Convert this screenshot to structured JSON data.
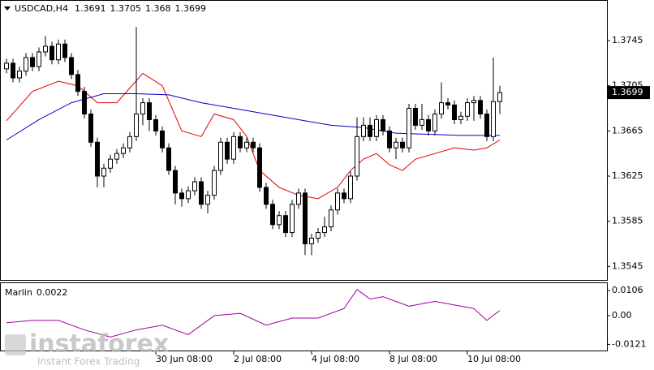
{
  "chart_data": [
    {
      "type": "candlestick",
      "symbol": "USDCAD,H4",
      "open": [
        1.372,
        1.3725,
        1.3712,
        1.3718,
        1.373,
        1.3722,
        1.3735,
        1.374,
        1.3728,
        1.3742,
        1.373,
        1.3715,
        1.37,
        1.368,
        1.3655,
        1.3625,
        1.3632,
        1.364,
        1.3645,
        1.365,
        1.366,
        1.368,
        1.369,
        1.3675,
        1.3665,
        1.365,
        1.363,
        1.361,
        1.3605,
        1.3612,
        1.362,
        1.36,
        1.3608,
        1.363,
        1.3655,
        1.364,
        1.366,
        1.365,
        1.3655,
        1.365,
        1.3615,
        1.36,
        1.3582,
        1.359,
        1.3575,
        1.36,
        1.361,
        1.3565,
        1.357,
        1.3575,
        1.358,
        1.3595,
        1.361,
        1.3605,
        1.3625,
        1.366,
        1.367,
        1.366,
        1.3675,
        1.3665,
        1.365,
        1.3655,
        1.365,
        1.3685,
        1.367,
        1.3675,
        1.3665,
        1.368,
        1.369,
        1.3688,
        1.3675,
        1.3678,
        1.369,
        1.3692,
        1.368,
        1.366,
        1.3691
      ],
      "high": [
        1.3729,
        1.3729,
        1.3722,
        1.3734,
        1.3734,
        1.3739,
        1.3749,
        1.3744,
        1.3746,
        1.3746,
        1.3734,
        1.3719,
        1.3704,
        1.3684,
        1.3659,
        1.3636,
        1.3644,
        1.3649,
        1.3654,
        1.3664,
        1.3757,
        1.3694,
        1.3694,
        1.3679,
        1.3669,
        1.3654,
        1.3634,
        1.3614,
        1.3616,
        1.3624,
        1.3624,
        1.3612,
        1.3634,
        1.3659,
        1.3659,
        1.3664,
        1.3664,
        1.3659,
        1.3659,
        1.3654,
        1.3619,
        1.3604,
        1.3594,
        1.3594,
        1.3604,
        1.3614,
        1.3614,
        1.3574,
        1.3579,
        1.3589,
        1.3599,
        1.3614,
        1.3614,
        1.3629,
        1.3677,
        1.3677,
        1.3677,
        1.3679,
        1.3679,
        1.3669,
        1.3659,
        1.3659,
        1.3689,
        1.3689,
        1.3689,
        1.3679,
        1.3684,
        1.3708,
        1.3694,
        1.3692,
        1.3682,
        1.3694,
        1.3696,
        1.3696,
        1.3684,
        1.373,
        1.3705
      ],
      "low": [
        1.3716,
        1.3708,
        1.3708,
        1.3714,
        1.3718,
        1.3718,
        1.3731,
        1.3724,
        1.3724,
        1.3726,
        1.3711,
        1.3696,
        1.3676,
        1.3651,
        1.3615,
        1.3615,
        1.3628,
        1.3636,
        1.3641,
        1.3646,
        1.3656,
        1.367,
        1.3665,
        1.3661,
        1.3646,
        1.3626,
        1.36,
        1.3598,
        1.3601,
        1.3608,
        1.3596,
        1.3592,
        1.3604,
        1.3626,
        1.3636,
        1.3636,
        1.3646,
        1.3646,
        1.3646,
        1.3611,
        1.3596,
        1.3578,
        1.3578,
        1.3571,
        1.3571,
        1.3596,
        1.3555,
        1.3555,
        1.3566,
        1.3571,
        1.3576,
        1.3591,
        1.3601,
        1.3601,
        1.3621,
        1.3656,
        1.3656,
        1.3656,
        1.3661,
        1.3646,
        1.364,
        1.3646,
        1.3646,
        1.3666,
        1.3666,
        1.3661,
        1.3661,
        1.3676,
        1.3684,
        1.3671,
        1.3671,
        1.3674,
        1.3674,
        1.3676,
        1.3656,
        1.3656,
        1.368
      ],
      "close": [
        1.3725,
        1.3712,
        1.3718,
        1.373,
        1.3722,
        1.3735,
        1.374,
        1.3728,
        1.3742,
        1.373,
        1.3715,
        1.37,
        1.368,
        1.3655,
        1.3625,
        1.3632,
        1.364,
        1.3645,
        1.365,
        1.366,
        1.368,
        1.369,
        1.3675,
        1.3665,
        1.365,
        1.363,
        1.361,
        1.3605,
        1.3612,
        1.362,
        1.36,
        1.3608,
        1.363,
        1.3655,
        1.364,
        1.366,
        1.365,
        1.3655,
        1.365,
        1.3615,
        1.36,
        1.3582,
        1.359,
        1.3575,
        1.36,
        1.361,
        1.3565,
        1.357,
        1.3575,
        1.358,
        1.3595,
        1.361,
        1.3605,
        1.3625,
        1.366,
        1.367,
        1.366,
        1.3675,
        1.3665,
        1.365,
        1.3655,
        1.365,
        1.3685,
        1.367,
        1.3675,
        1.3665,
        1.368,
        1.369,
        1.3688,
        1.3675,
        1.3678,
        1.369,
        1.3692,
        1.368,
        1.366,
        1.3691,
        1.3699
      ],
      "overlays": [
        {
          "color": "#e00000",
          "x": [
            0,
            4,
            8,
            11,
            14,
            17,
            21,
            24,
            27,
            30,
            32,
            35,
            37,
            39,
            42,
            45,
            48,
            51,
            53,
            55,
            57,
            59,
            61,
            63,
            66,
            69,
            72,
            74,
            76
          ],
          "values": [
            1.3674,
            1.37,
            1.3709,
            1.3705,
            1.369,
            1.369,
            1.3716,
            1.3705,
            1.3665,
            1.366,
            1.368,
            1.3675,
            1.366,
            1.363,
            1.3615,
            1.3608,
            1.3605,
            1.3615,
            1.363,
            1.364,
            1.3645,
            1.3635,
            1.363,
            1.364,
            1.3645,
            1.365,
            1.3648,
            1.365,
            1.3657
          ]
        },
        {
          "color": "#0000cc",
          "x": [
            0,
            5,
            10,
            15,
            20,
            25,
            30,
            35,
            40,
            45,
            50,
            55,
            60,
            65,
            70,
            76
          ],
          "values": [
            1.3657,
            1.3675,
            1.369,
            1.3698,
            1.3698,
            1.3697,
            1.369,
            1.3685,
            1.368,
            1.3675,
            1.367,
            1.3668,
            1.3663,
            1.3662,
            1.3661,
            1.3661
          ]
        }
      ],
      "xlim": [
        -1,
        92.5
      ],
      "ylim": [
        1.3533,
        1.3781
      ],
      "yticks": [
        1.3745,
        1.3705,
        1.3665,
        1.3625,
        1.3585,
        1.3545
      ],
      "xticks": [
        {
          "value": 23,
          "label": "30 Jun 08:00"
        },
        {
          "value": 35,
          "label": "2 Jul 08:00"
        },
        {
          "value": 47,
          "label": "4 Jul 08:00"
        },
        {
          "value": 59,
          "label": "8 Jul 08:00"
        },
        {
          "value": 71,
          "label": "10 Jul 08:00"
        }
      ]
    },
    {
      "type": "line",
      "name": "Marlin",
      "color": "#a000a0",
      "x": [
        0,
        4,
        8,
        12,
        16,
        20,
        24,
        28,
        32,
        36,
        40,
        44,
        48,
        52,
        54,
        56,
        58,
        60,
        62,
        64,
        66,
        68,
        70,
        72,
        74,
        76
      ],
      "values": [
        -0.003,
        -0.002,
        -0.002,
        -0.006,
        -0.009,
        -0.006,
        -0.004,
        -0.008,
        0.0,
        0.001,
        -0.004,
        -0.001,
        -0.001,
        0.003,
        0.011,
        0.007,
        0.008,
        0.006,
        0.004,
        0.005,
        0.006,
        0.005,
        0.004,
        0.003,
        -0.002,
        0.0022
      ],
      "xlim": [
        -1,
        92.5
      ],
      "ylim": [
        -0.0147,
        0.0137
      ],
      "yticks": [
        0.0106,
        {
          "value": 0,
          "label": "0.00"
        },
        -0.0121
      ]
    }
  ],
  "watermark": {
    "brand": "instaforex",
    "tagline": "Instant Forex Trading"
  }
}
